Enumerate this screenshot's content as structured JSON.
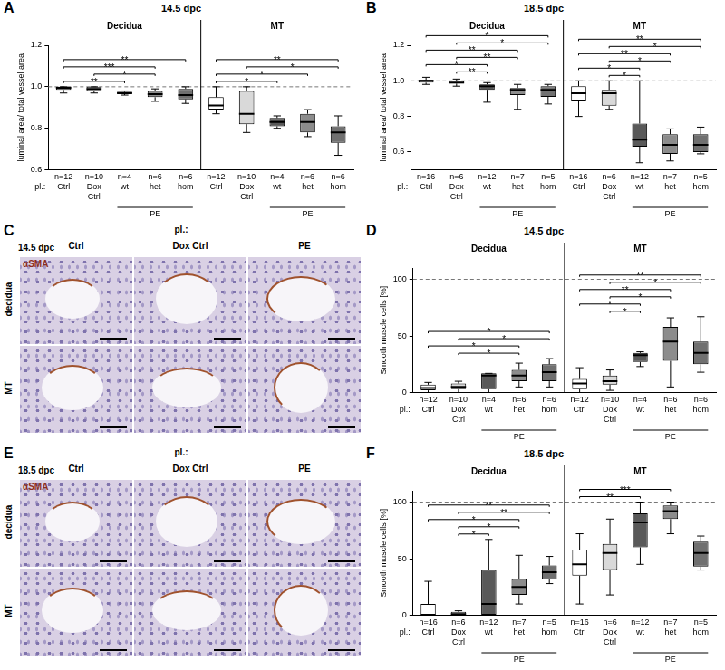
{
  "chart_data": [
    {
      "panel": "A",
      "type": "box",
      "title": "14.5 dpc",
      "y_label": "luminal area/ total vessel area",
      "categories": [
        "Ctrl",
        "Dox Ctrl",
        "wt",
        "het",
        "hom",
        "Ctrl",
        "Dox Ctrl",
        "wt",
        "het",
        "hom"
      ],
      "n_labels": [
        "n=12",
        "n=10",
        "n=4",
        "n=6",
        "n=6",
        "n=12",
        "n=10",
        "n=4",
        "n=6",
        "n=6"
      ],
      "group_labels": [
        "Decidua",
        "MT"
      ],
      "subgroups": [
        {
          "label": "PE",
          "from": 2,
          "to": 4
        },
        {
          "label": "PE",
          "from": 7,
          "to": 9
        }
      ],
      "prefix": "pl.:",
      "values": [
        [
          0.97,
          0.985,
          0.995,
          1.0,
          1.0
        ],
        [
          0.97,
          0.98,
          0.99,
          1.0,
          1.0
        ],
        [
          0.96,
          0.965,
          0.97,
          0.975,
          0.98
        ],
        [
          0.93,
          0.95,
          0.965,
          0.98,
          0.99
        ],
        [
          0.92,
          0.94,
          0.96,
          0.99,
          1.0
        ],
        [
          0.87,
          0.89,
          0.91,
          0.95,
          1.0
        ],
        [
          0.78,
          0.82,
          0.87,
          0.98,
          1.0
        ],
        [
          0.8,
          0.81,
          0.83,
          0.85,
          0.86
        ],
        [
          0.76,
          0.78,
          0.83,
          0.87,
          0.89
        ],
        [
          0.67,
          0.73,
          0.78,
          0.81,
          0.86
        ]
      ],
      "colors": [
        "#ffffff",
        "#d9d9d9",
        "#595959",
        "#8c8c8c",
        "#707070",
        "#ffffff",
        "#d9d9d9",
        "#595959",
        "#8c8c8c",
        "#707070"
      ],
      "reference_line": 1,
      "comparisons": [
        {
          "from": 0,
          "to": 2,
          "label": "**"
        },
        {
          "from": 0,
          "to": 3,
          "label": "***"
        },
        {
          "from": 0,
          "to": 4,
          "label": "**"
        },
        {
          "from": 1,
          "to": 3,
          "label": "*"
        },
        {
          "from": 5,
          "to": 7,
          "label": "*"
        },
        {
          "from": 5,
          "to": 8,
          "label": "*"
        },
        {
          "from": 5,
          "to": 9,
          "label": "**"
        },
        {
          "from": 6,
          "to": 9,
          "label": "*"
        }
      ],
      "ylim": [
        0.6,
        1.2
      ],
      "yticks": [
        0.6,
        0.8,
        {
          "value": 1,
          "label": "1.0"
        },
        1.2
      ],
      "grid": false
    },
    {
      "panel": "B",
      "type": "box",
      "title": "18.5 dpc",
      "y_label": "luminal area/ total vessel area",
      "categories": [
        "Ctrl",
        "Dox Ctrl",
        "wt",
        "het",
        "hom",
        "Ctrl",
        "Dox Ctrl",
        "wt",
        "het",
        "hom"
      ],
      "n_labels": [
        "n=16",
        "n=6",
        "n=12",
        "n=7",
        "n=5",
        "n=16",
        "n=6",
        "n=12",
        "n=7",
        "n=5"
      ],
      "group_labels": [
        "Decidua",
        "MT"
      ],
      "subgroups": [
        {
          "label": "PE",
          "from": 2,
          "to": 4
        },
        {
          "label": "PE",
          "from": 7,
          "to": 9
        }
      ],
      "prefix": "pl.:",
      "values": [
        [
          0.98,
          0.99,
          1.0,
          1.005,
          1.02
        ],
        [
          0.97,
          0.985,
          0.99,
          1.0,
          1.01
        ],
        [
          0.88,
          0.95,
          0.97,
          0.98,
          0.99
        ],
        [
          0.84,
          0.92,
          0.95,
          0.96,
          0.98
        ],
        [
          0.87,
          0.91,
          0.95,
          0.97,
          0.98
        ],
        [
          0.8,
          0.89,
          0.93,
          0.97,
          1.0
        ],
        [
          0.84,
          0.86,
          0.93,
          0.95,
          1.0
        ],
        [
          0.54,
          0.63,
          0.67,
          0.76,
          1.0
        ],
        [
          0.55,
          0.59,
          0.64,
          0.7,
          0.73
        ],
        [
          0.59,
          0.6,
          0.64,
          0.7,
          0.74
        ]
      ],
      "colors": [
        "#ffffff",
        "#d9d9d9",
        "#595959",
        "#8c8c8c",
        "#707070",
        "#ffffff",
        "#d9d9d9",
        "#595959",
        "#8c8c8c",
        "#707070"
      ],
      "reference_line": 1,
      "comparisons": [
        {
          "from": 0,
          "to": 2,
          "label": "*"
        },
        {
          "from": 0,
          "to": 3,
          "label": "**"
        },
        {
          "from": 0,
          "to": 4,
          "label": "*"
        },
        {
          "from": 1,
          "to": 2,
          "label": "**"
        },
        {
          "from": 1,
          "to": 3,
          "label": "**"
        },
        {
          "from": 1,
          "to": 4,
          "label": "*"
        },
        {
          "from": 5,
          "to": 7,
          "label": "*"
        },
        {
          "from": 5,
          "to": 8,
          "label": "**"
        },
        {
          "from": 5,
          "to": 9,
          "label": "**"
        },
        {
          "from": 6,
          "to": 7,
          "label": "*"
        },
        {
          "from": 6,
          "to": 8,
          "label": "*"
        },
        {
          "from": 6,
          "to": 9,
          "label": "*"
        }
      ],
      "ylim": [
        0.5,
        1.2
      ],
      "yticks": [
        0.6,
        0.8,
        {
          "value": 1,
          "label": "1.0"
        },
        1.2
      ],
      "grid": false
    },
    {
      "panel": "D",
      "type": "box",
      "title": "14.5 dpc",
      "y_label": "Smooth muscle cells [%]",
      "categories": [
        "Ctrl",
        "Dox Ctrl",
        "wt",
        "het",
        "hom",
        "Ctrl",
        "Dox Ctrl",
        "wt",
        "het",
        "hom"
      ],
      "n_labels": [
        "n=12",
        "n=10",
        "n=4",
        "n=6",
        "n=6",
        "n=12",
        "n=10",
        "n=4",
        "n=6",
        "n=6"
      ],
      "group_labels": [
        "Decidua",
        "MT"
      ],
      "subgroups": [
        {
          "label": "PE",
          "from": 2,
          "to": 4
        },
        {
          "label": "PE",
          "from": 7,
          "to": 9
        }
      ],
      "prefix": "pl.:",
      "values": [
        [
          0,
          2,
          4,
          7,
          9
        ],
        [
          0,
          3,
          5,
          8,
          10
        ],
        [
          0,
          3,
          15,
          17,
          17
        ],
        [
          5,
          10,
          15,
          20,
          26
        ],
        [
          5,
          10,
          18,
          25,
          30
        ],
        [
          0,
          3,
          8,
          12,
          22
        ],
        [
          2,
          7,
          10,
          15,
          20
        ],
        [
          23,
          27,
          33,
          35,
          36
        ],
        [
          5,
          28,
          45,
          58,
          66
        ],
        [
          18,
          25,
          35,
          45,
          67
        ]
      ],
      "colors": [
        "#ffffff",
        "#d9d9d9",
        "#595959",
        "#8c8c8c",
        "#707070",
        "#ffffff",
        "#d9d9d9",
        "#595959",
        "#8c8c8c",
        "#707070"
      ],
      "reference_line": 100,
      "comparisons": [
        {
          "from": 0,
          "to": 3,
          "label": "*"
        },
        {
          "from": 0,
          "to": 4,
          "label": "*"
        },
        {
          "from": 1,
          "to": 3,
          "label": "*"
        },
        {
          "from": 1,
          "to": 4,
          "label": "*"
        },
        {
          "from": 5,
          "to": 7,
          "label": "*"
        },
        {
          "from": 5,
          "to": 8,
          "label": "**"
        },
        {
          "from": 5,
          "to": 9,
          "label": "**"
        },
        {
          "from": 6,
          "to": 7,
          "label": "*"
        },
        {
          "from": 6,
          "to": 8,
          "label": "*"
        },
        {
          "from": 6,
          "to": 9,
          "label": "*"
        }
      ],
      "ylim": [
        0,
        110
      ],
      "yticks": [
        0,
        50,
        100
      ],
      "grid": false
    },
    {
      "panel": "F",
      "type": "box",
      "title": "18.5 dpc",
      "y_label": "Smooth muscle cells [%]",
      "categories": [
        "Ctrl",
        "Dox Ctrl",
        "wt",
        "het",
        "hom",
        "Ctrl",
        "Dox Ctrl",
        "wt",
        "het",
        "hom"
      ],
      "n_labels": [
        "n=16",
        "n=6",
        "n=12",
        "n=7",
        "n=5",
        "n=16",
        "n=6",
        "n=12",
        "n=7",
        "n=5"
      ],
      "group_labels": [
        "Decidua",
        "MT"
      ],
      "subgroups": [
        {
          "label": "PE",
          "from": 2,
          "to": 4
        },
        {
          "label": "PE",
          "from": 7,
          "to": 9
        }
      ],
      "prefix": "pl.:",
      "values": [
        [
          0,
          0,
          0,
          10,
          30
        ],
        [
          0,
          0,
          1,
          3,
          4
        ],
        [
          0,
          0,
          10,
          40,
          67
        ],
        [
          10,
          18,
          25,
          32,
          53
        ],
        [
          28,
          32,
          38,
          44,
          52
        ],
        [
          10,
          35,
          45,
          58,
          72
        ],
        [
          18,
          40,
          55,
          63,
          85
        ],
        [
          45,
          60,
          82,
          90,
          100
        ],
        [
          72,
          85,
          92,
          97,
          100
        ],
        [
          40,
          43,
          55,
          65,
          70
        ]
      ],
      "colors": [
        "#ffffff",
        "#d9d9d9",
        "#595959",
        "#8c8c8c",
        "#707070",
        "#ffffff",
        "#d9d9d9",
        "#595959",
        "#8c8c8c",
        "#707070"
      ],
      "reference_line": 100,
      "comparisons": [
        {
          "from": 0,
          "to": 3,
          "label": "*"
        },
        {
          "from": 0,
          "to": 4,
          "label": "**"
        },
        {
          "from": 1,
          "to": 2,
          "label": "*"
        },
        {
          "from": 1,
          "to": 3,
          "label": "*"
        },
        {
          "from": 1,
          "to": 4,
          "label": "**"
        },
        {
          "from": 5,
          "to": 7,
          "label": "**"
        },
        {
          "from": 5,
          "to": 8,
          "label": "***"
        }
      ],
      "ylim": [
        0,
        110
      ],
      "yticks": [
        0,
        50,
        100
      ],
      "grid": false
    }
  ],
  "micrographs": [
    {
      "panel": "C",
      "title": "14.5 dpc",
      "stain": "αSMA",
      "prefix": "pl.:",
      "columns": [
        "Ctrl",
        "Dox Ctrl",
        "PE"
      ],
      "rows": [
        "decidua",
        "MT"
      ]
    },
    {
      "panel": "E",
      "title": "18.5 dpc",
      "stain": "αSMA",
      "prefix": "pl.:",
      "columns": [
        "Ctrl",
        "Dox Ctrl",
        "PE"
      ],
      "rows": [
        "decidua",
        "MT"
      ]
    }
  ]
}
